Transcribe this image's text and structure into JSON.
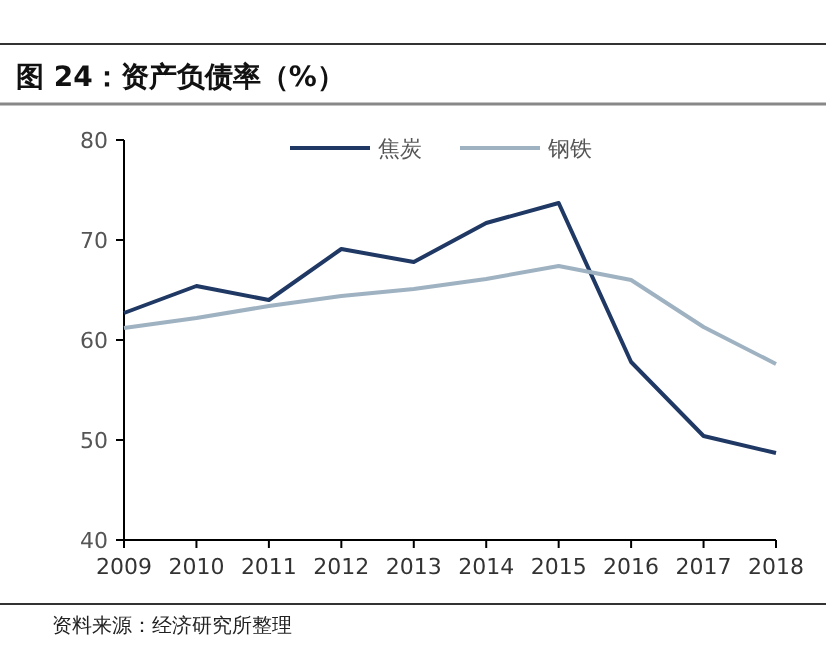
{
  "chart_data": {
    "type": "line",
    "title": "图 24：资产负债率（%）",
    "categories": [
      "2009",
      "2010",
      "2011",
      "2012",
      "2013",
      "2014",
      "2015",
      "2016",
      "2017",
      "2018"
    ],
    "series": [
      {
        "name": "焦炭",
        "color": "#1f3864",
        "values": [
          62.7,
          65.4,
          64.0,
          69.1,
          67.8,
          71.7,
          73.7,
          57.8,
          50.4,
          48.7
        ]
      },
      {
        "name": "钢铁",
        "color": "#9fb2c2",
        "values": [
          61.2,
          62.2,
          63.4,
          64.4,
          65.1,
          66.1,
          67.4,
          66.0,
          61.3,
          57.6
        ]
      }
    ],
    "ylim": [
      40,
      80
    ],
    "yticks": [
      40,
      50,
      60,
      70,
      80
    ],
    "grid": false,
    "legend": "top",
    "marker": "none",
    "line_style": "solid",
    "annotations": [
      "资料来源：经济研究所整理"
    ]
  }
}
